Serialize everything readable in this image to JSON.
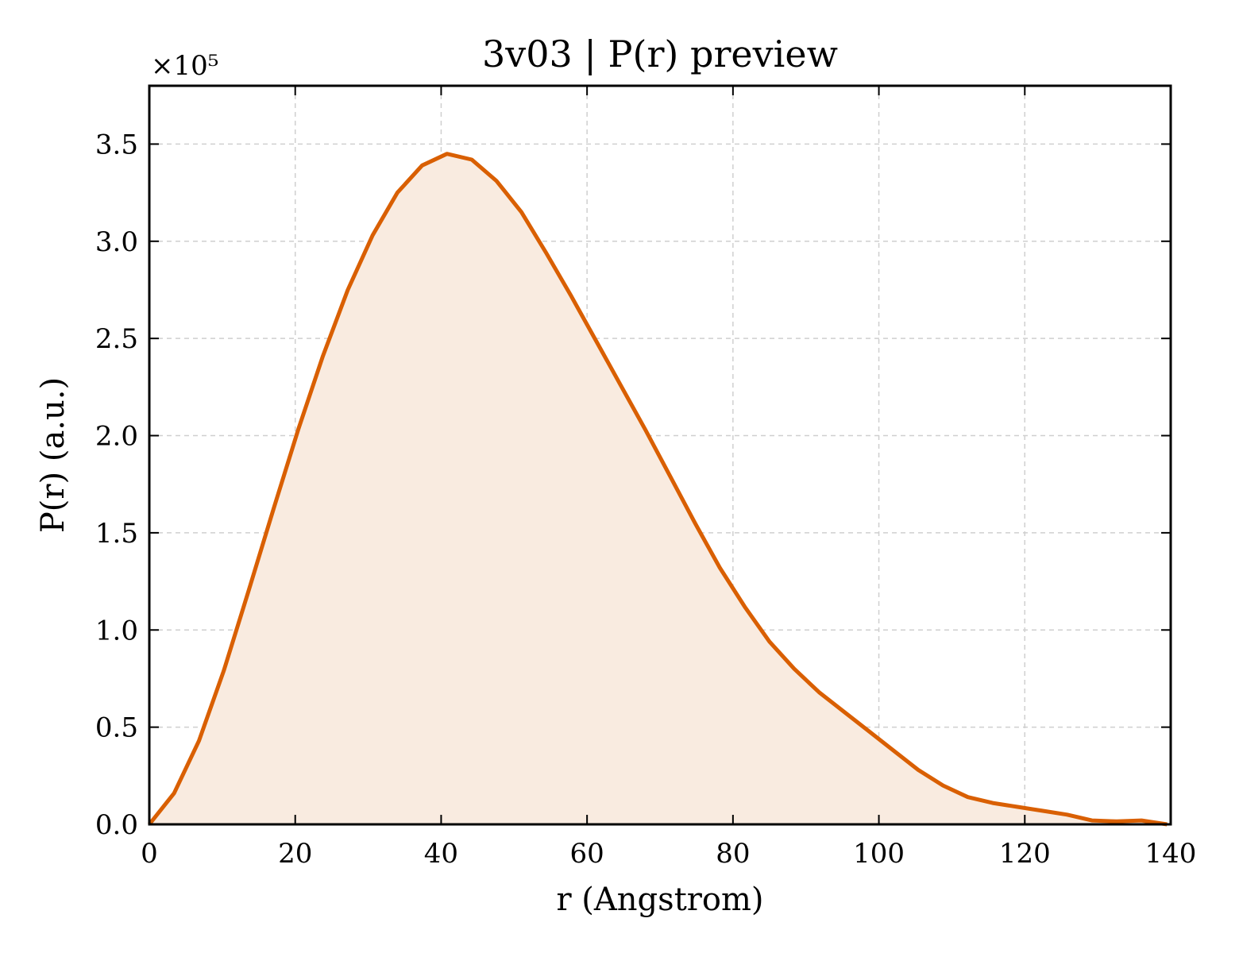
{
  "chart_data": {
    "type": "area",
    "title": "3v03 | P(r) preview",
    "xlabel": "r (Angstrom)",
    "ylabel": "P(r) (a.u.)",
    "y_offset_label": "×10⁵",
    "xlim": [
      0,
      140
    ],
    "ylim": [
      0,
      3.8
    ],
    "xticks": [
      0,
      20,
      40,
      60,
      80,
      100,
      120,
      140
    ],
    "yticks": [
      0.0,
      0.5,
      1.0,
      1.5,
      2.0,
      2.5,
      3.0,
      3.5
    ],
    "xtick_labels": [
      "0",
      "20",
      "40",
      "60",
      "80",
      "100",
      "120",
      "140"
    ],
    "ytick_labels": [
      "0.0",
      "0.5",
      "1.0",
      "1.5",
      "2.0",
      "2.5",
      "3.0",
      "3.5"
    ],
    "grid": true,
    "line_color": "#d95f02",
    "fill_color": "#f9ebe0",
    "series": [
      {
        "x": [
          0,
          3.4,
          6.8,
          10.2,
          13.6,
          17.0,
          20.4,
          23.8,
          27.2,
          30.6,
          34.0,
          37.4,
          40.8,
          44.2,
          47.6,
          51.0,
          54.4,
          57.8,
          61.2,
          64.6,
          68.0,
          71.4,
          74.8,
          78.2,
          81.6,
          85.0,
          88.4,
          91.8,
          95.2,
          98.6,
          102.0,
          105.4,
          108.8,
          112.2,
          115.6,
          119.0,
          122.4,
          125.8,
          129.2,
          132.6,
          136.0,
          139.5
        ],
        "y": [
          0.0,
          0.16,
          0.43,
          0.79,
          1.2,
          1.62,
          2.03,
          2.41,
          2.75,
          3.03,
          3.25,
          3.39,
          3.45,
          3.42,
          3.31,
          3.15,
          2.94,
          2.72,
          2.49,
          2.26,
          2.03,
          1.79,
          1.55,
          1.32,
          1.12,
          0.94,
          0.8,
          0.68,
          0.58,
          0.48,
          0.38,
          0.28,
          0.2,
          0.14,
          0.11,
          0.09,
          0.07,
          0.05,
          0.02,
          0.015,
          0.02,
          0.0
        ]
      }
    ]
  }
}
